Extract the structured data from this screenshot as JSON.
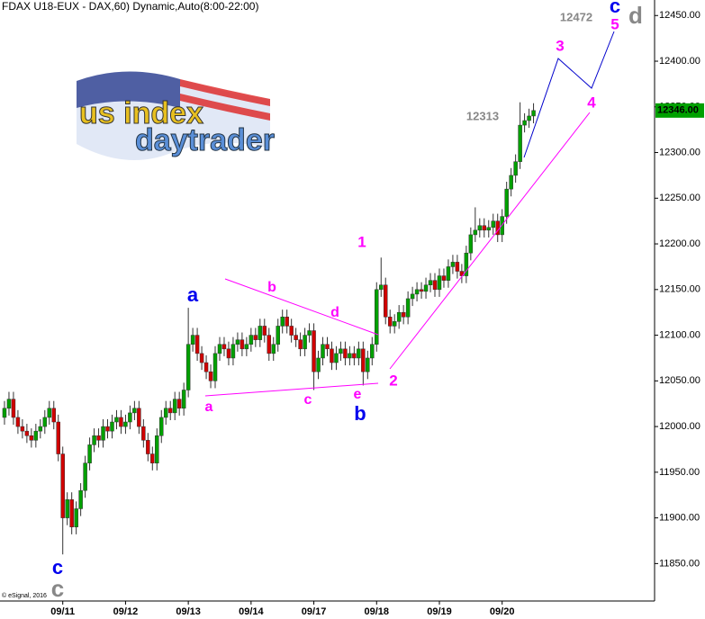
{
  "chart_data": {
    "type": "candlestick",
    "title": "FDAX U18-EUX - DAX,60) Dynamic,Auto(8:00-22:00)",
    "copyright": "© eSignal, 2016",
    "logo": {
      "line1": "us index",
      "line2": "daytrader"
    },
    "up_color": "#00a000",
    "down_color": "#d00000",
    "x": [
      0,
      1,
      2,
      3,
      4,
      5,
      6,
      7,
      8,
      9,
      10,
      11,
      12,
      13,
      14,
      15,
      16,
      17,
      18,
      19,
      20,
      21,
      22,
      23,
      24,
      25,
      26,
      27,
      28,
      29,
      30,
      31,
      32,
      33,
      34,
      35,
      36,
      37,
      38,
      39,
      40,
      41,
      42,
      43,
      44,
      45,
      46,
      47,
      48,
      49,
      50,
      51,
      52,
      53,
      54,
      55,
      56,
      57,
      58,
      59,
      60,
      61,
      62,
      63,
      64,
      65,
      66,
      67,
      68,
      69,
      70,
      71,
      72,
      73,
      74,
      75,
      76,
      77,
      78,
      79,
      80,
      81,
      82,
      83,
      84,
      85,
      86,
      87,
      88,
      89,
      90,
      91,
      92,
      93,
      94,
      95,
      96,
      97,
      98,
      99,
      100,
      101,
      102,
      103,
      104,
      105,
      106,
      107,
      108,
      109,
      110,
      111,
      112,
      113,
      114,
      115,
      116,
      117,
      118
    ],
    "open": [
      12010,
      12020,
      12030,
      12010,
      12000,
      11995,
      11990,
      11985,
      11995,
      12000,
      12010,
      12020,
      12005,
      11970,
      11900,
      11920,
      11890,
      11910,
      11930,
      11960,
      11980,
      11990,
      11985,
      12000,
      11995,
      12005,
      12010,
      12000,
      12005,
      12015,
      12020,
      12000,
      11985,
      11970,
      11960,
      11990,
      12010,
      12020,
      12015,
      12030,
      12020,
      12040,
      12090,
      12100,
      12080,
      12070,
      12060,
      12050,
      12080,
      12090,
      12085,
      12075,
      12090,
      12095,
      12085,
      12090,
      12100,
      12095,
      12110,
      12100,
      12080,
      12090,
      12110,
      12120,
      12110,
      12100,
      12095,
      12085,
      12100,
      12105,
      12060,
      12075,
      12090,
      12085,
      12070,
      12080,
      12085,
      12075,
      12080,
      12075,
      12085,
      12060,
      12075,
      12090,
      12150,
      12155,
      12120,
      12110,
      12115,
      12125,
      12120,
      12140,
      12145,
      12150,
      12148,
      12155,
      12160,
      12150,
      12165,
      12160,
      12175,
      12180,
      12170,
      12165,
      12190,
      12210,
      12215,
      12220,
      12215,
      12218,
      12225,
      12210,
      12230,
      12260,
      12275,
      12290,
      12330,
      12335,
      12340
    ],
    "high": [
      12028,
      12038,
      12038,
      12018,
      12008,
      12003,
      11998,
      12003,
      12008,
      12018,
      12028,
      12028,
      12013,
      11978,
      11928,
      11928,
      11918,
      11938,
      11968,
      11988,
      11998,
      11998,
      12008,
      12008,
      12013,
      12018,
      12018,
      12013,
      12023,
      12028,
      12028,
      12008,
      11993,
      11978,
      11998,
      12018,
      12028,
      12028,
      12038,
      12038,
      12048,
      12130,
      12108,
      12108,
      12088,
      12078,
      12068,
      12088,
      12098,
      12098,
      12093,
      12098,
      12103,
      12103,
      12098,
      12108,
      12108,
      12118,
      12118,
      12108,
      12098,
      12118,
      12128,
      12128,
      12118,
      12108,
      12103,
      12108,
      12113,
      12113,
      12083,
      12098,
      12098,
      12093,
      12088,
      12093,
      12093,
      12088,
      12088,
      12093,
      12093,
      12083,
      12098,
      12158,
      12185,
      12163,
      12128,
      12123,
      12133,
      12133,
      12148,
      12153,
      12158,
      12158,
      12163,
      12168,
      12168,
      12173,
      12173,
      12183,
      12188,
      12188,
      12178,
      12198,
      12218,
      12240,
      12228,
      12228,
      12226,
      12233,
      12233,
      12238,
      12268,
      12283,
      12298,
      12355,
      12343,
      12348,
      12354
    ],
    "low": [
      12002,
      12012,
      12002,
      11992,
      11987,
      11982,
      11977,
      11977,
      11987,
      11992,
      12002,
      11997,
      11962,
      11860,
      11892,
      11882,
      11882,
      11902,
      11922,
      11952,
      11972,
      11977,
      11977,
      11987,
      11987,
      11997,
      11992,
      11992,
      11997,
      12007,
      11992,
      11977,
      11962,
      11952,
      11952,
      11982,
      12002,
      12007,
      12007,
      12012,
      12012,
      12032,
      12082,
      12072,
      12062,
      12052,
      12042,
      12042,
      12072,
      12077,
      12067,
      12067,
      12082,
      12077,
      12077,
      12082,
      12087,
      12087,
      12092,
      12072,
      12072,
      12082,
      12102,
      12102,
      12092,
      12087,
      12077,
      12077,
      12092,
      12040,
      12052,
      12067,
      12077,
      12062,
      12062,
      12072,
      12067,
      12067,
      12067,
      12067,
      12045,
      12052,
      12067,
      12082,
      12142,
      12112,
      12102,
      12102,
      12107,
      12112,
      12112,
      12132,
      12137,
      12140,
      12140,
      12147,
      12142,
      12142,
      12152,
      12152,
      12167,
      12162,
      12157,
      12157,
      12182,
      12202,
      12207,
      12207,
      12207,
      12210,
      12202,
      12202,
      12222,
      12252,
      12267,
      12282,
      12322,
      12327,
      12332
    ],
    "close": [
      12020,
      12030,
      12010,
      12000,
      11995,
      11990,
      11985,
      11995,
      12000,
      12010,
      12020,
      12005,
      11970,
      11900,
      11920,
      11890,
      11910,
      11930,
      11960,
      11980,
      11990,
      11985,
      12000,
      11995,
      12005,
      12010,
      12000,
      12005,
      12015,
      12020,
      12000,
      11985,
      11970,
      11960,
      11990,
      12010,
      12020,
      12015,
      12030,
      12020,
      12040,
      12090,
      12100,
      12080,
      12070,
      12060,
      12050,
      12080,
      12090,
      12085,
      12075,
      12090,
      12095,
      12085,
      12090,
      12100,
      12095,
      12110,
      12100,
      12080,
      12090,
      12110,
      12120,
      12110,
      12100,
      12095,
      12085,
      12100,
      12105,
      12060,
      12075,
      12090,
      12085,
      12070,
      12080,
      12085,
      12075,
      12080,
      12075,
      12085,
      12060,
      12075,
      12090,
      12150,
      12155,
      12120,
      12110,
      12115,
      12125,
      12120,
      12140,
      12145,
      12150,
      12148,
      12155,
      12160,
      12150,
      12165,
      12160,
      12175,
      12180,
      12170,
      12165,
      12190,
      12210,
      12215,
      12220,
      12215,
      12218,
      12225,
      12210,
      12230,
      12260,
      12275,
      12290,
      12330,
      12335,
      12340,
      12346
    ],
    "xlim": [
      -1,
      145
    ],
    "xticks": [
      {
        "value": 13,
        "label": "09/11"
      },
      {
        "value": 27,
        "label": "09/12"
      },
      {
        "value": 41,
        "label": "09/13"
      },
      {
        "value": 55,
        "label": "09/14"
      },
      {
        "value": 69,
        "label": "09/17"
      },
      {
        "value": 83,
        "label": "09/18"
      },
      {
        "value": 97,
        "label": "09/19"
      },
      {
        "value": 111,
        "label": "09/20"
      }
    ],
    "ylim": [
      11809,
      12467
    ],
    "yticks": [
      {
        "value": 11850,
        "label": "11850.00"
      },
      {
        "value": 11900,
        "label": "11900.00"
      },
      {
        "value": 11950,
        "label": "11950.00"
      },
      {
        "value": 12000,
        "label": "12000.00"
      },
      {
        "value": 12050,
        "label": "12050.00"
      },
      {
        "value": 12100,
        "label": "12100.00"
      },
      {
        "value": 12150,
        "label": "12150.00"
      },
      {
        "value": 12200,
        "label": "12200.00"
      },
      {
        "value": 12250,
        "label": "12250.00"
      },
      {
        "value": 12300,
        "label": "12300.00"
      },
      {
        "value": 12350,
        "label": "12350.00"
      },
      {
        "value": 12400,
        "label": "12400.00"
      },
      {
        "value": 12450,
        "label": "12450.00"
      }
    ],
    "last_price": {
      "value": 12346,
      "label": "12346.00"
    },
    "price_notes": [
      "12472",
      "12313"
    ],
    "wave_labels": {
      "pink_big": [
        "1",
        "2",
        "3",
        "4",
        "5"
      ],
      "pink_small": [
        "a",
        "b",
        "c",
        "d",
        "e"
      ],
      "blue": [
        "a",
        "b",
        "c",
        "c"
      ],
      "gray": [
        "c",
        "d"
      ]
    }
  }
}
